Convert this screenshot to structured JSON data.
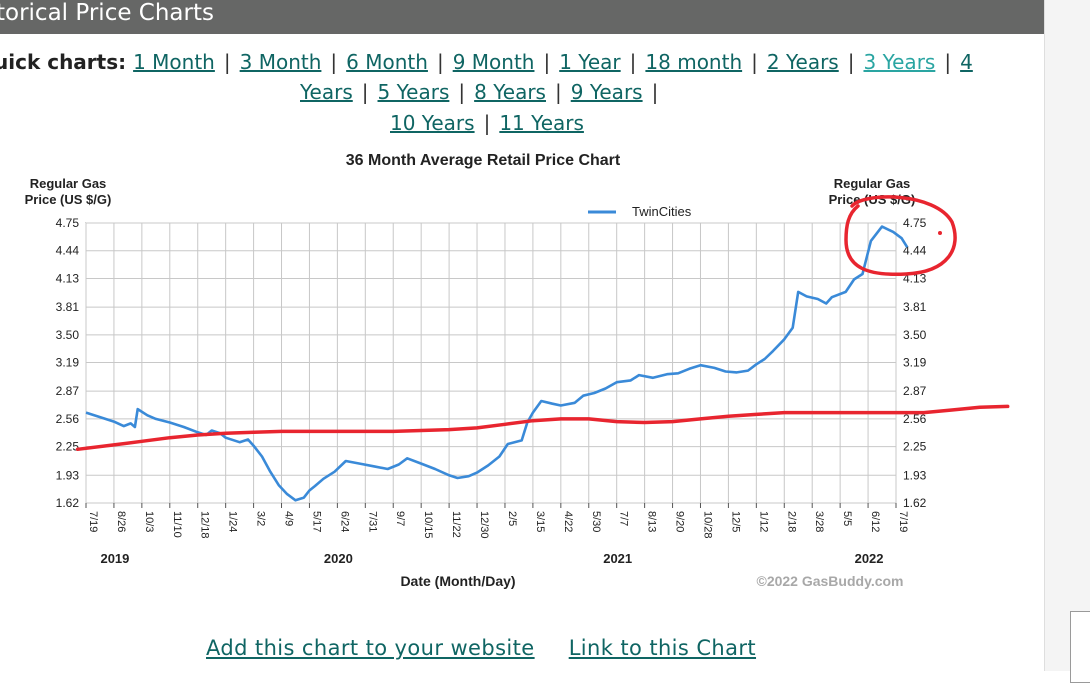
{
  "header": {
    "title": "torical Price Charts"
  },
  "quick_charts": {
    "label": "uick charts:",
    "links": [
      "1 Month",
      "3 Month",
      "6 Month",
      "9 Month",
      "1 Year",
      "18 month",
      "2 Years",
      "3 Years",
      "4",
      "Years",
      "5 Years",
      "8 Years",
      "9 Years",
      "10 Years",
      "11 Years"
    ]
  },
  "bottom_links": {
    "add": "Add this chart to your website",
    "link": "Link to this Chart"
  },
  "colors": {
    "series": "#3a8ad8",
    "annotation": "#e8252f",
    "link": "#0f6563",
    "link_visited": "#2aa5a2"
  },
  "chart_data": {
    "type": "line",
    "title": "36 Month Average Retail Price Chart",
    "ylabel_left": [
      "Regular Gas",
      "Price (US $/G)"
    ],
    "ylabel_right": [
      "Regular Gas",
      "Price (US $/G)"
    ],
    "xlabel": "Date (Month/Day)",
    "credit": "©2022 GasBuddy.com",
    "legend": "top-right",
    "grid": true,
    "ylim": [
      1.62,
      4.75
    ],
    "yticks": [
      "4.75",
      "4.44",
      "4.13",
      "3.81",
      "3.50",
      "3.19",
      "2.87",
      "2.56",
      "2.25",
      "1.93",
      "1.62"
    ],
    "xticks": [
      "7/19",
      "8/26",
      "10/3",
      "11/10",
      "12/18",
      "1/24",
      "3/2",
      "4/9",
      "5/17",
      "6/24",
      "7/31",
      "9/7",
      "10/15",
      "11/22",
      "12/30",
      "2/5",
      "3/15",
      "4/22",
      "5/30",
      "7/7",
      "8/13",
      "9/20",
      "10/28",
      "12/5",
      "1/12",
      "2/18",
      "3/28",
      "5/5",
      "6/12",
      "7/19"
    ],
    "years": [
      {
        "label": "2019",
        "at": 1
      },
      {
        "label": "2020",
        "at": 9
      },
      {
        "label": "2021",
        "at": 19
      },
      {
        "label": "2022",
        "at": 28
      }
    ],
    "series": [
      {
        "name": "TwinCities",
        "points": [
          [
            0,
            2.63
          ],
          [
            0.5,
            2.58
          ],
          [
            1,
            2.53
          ],
          [
            1.35,
            2.48
          ],
          [
            1.6,
            2.51
          ],
          [
            1.75,
            2.47
          ],
          [
            1.85,
            2.67
          ],
          [
            2.2,
            2.6
          ],
          [
            2.5,
            2.56
          ],
          [
            3,
            2.52
          ],
          [
            3.5,
            2.47
          ],
          [
            4,
            2.41
          ],
          [
            4.3,
            2.38
          ],
          [
            4.5,
            2.43
          ],
          [
            4.8,
            2.4
          ],
          [
            5,
            2.35
          ],
          [
            5.5,
            2.3
          ],
          [
            5.8,
            2.33
          ],
          [
            6,
            2.26
          ],
          [
            6.3,
            2.14
          ],
          [
            6.6,
            1.97
          ],
          [
            6.9,
            1.82
          ],
          [
            7.2,
            1.72
          ],
          [
            7.5,
            1.65
          ],
          [
            7.8,
            1.68
          ],
          [
            8,
            1.76
          ],
          [
            8.2,
            1.81
          ],
          [
            8.5,
            1.89
          ],
          [
            8.9,
            1.97
          ],
          [
            9.3,
            2.09
          ],
          [
            9.8,
            2.06
          ],
          [
            10.3,
            2.03
          ],
          [
            10.8,
            2.0
          ],
          [
            11.2,
            2.05
          ],
          [
            11.5,
            2.12
          ],
          [
            12,
            2.06
          ],
          [
            12.5,
            2.0
          ],
          [
            13,
            1.93
          ],
          [
            13.3,
            1.9
          ],
          [
            13.7,
            1.92
          ],
          [
            14,
            1.96
          ],
          [
            14.4,
            2.04
          ],
          [
            14.8,
            2.14
          ],
          [
            15.1,
            2.28
          ],
          [
            15.6,
            2.32
          ],
          [
            15.8,
            2.52
          ],
          [
            16,
            2.63
          ],
          [
            16.3,
            2.76
          ],
          [
            16.7,
            2.73
          ],
          [
            17,
            2.71
          ],
          [
            17.5,
            2.74
          ],
          [
            17.8,
            2.82
          ],
          [
            18.2,
            2.85
          ],
          [
            18.6,
            2.9
          ],
          [
            19,
            2.97
          ],
          [
            19.5,
            2.99
          ],
          [
            19.8,
            3.05
          ],
          [
            20.3,
            3.02
          ],
          [
            20.8,
            3.06
          ],
          [
            21.2,
            3.07
          ],
          [
            21.6,
            3.12
          ],
          [
            22,
            3.16
          ],
          [
            22.5,
            3.13
          ],
          [
            22.9,
            3.09
          ],
          [
            23.3,
            3.08
          ],
          [
            23.7,
            3.1
          ],
          [
            24,
            3.17
          ],
          [
            24.3,
            3.23
          ],
          [
            24.6,
            3.32
          ],
          [
            25,
            3.45
          ],
          [
            25.3,
            3.58
          ],
          [
            25.5,
            3.98
          ],
          [
            25.8,
            3.93
          ],
          [
            26.2,
            3.9
          ],
          [
            26.5,
            3.85
          ],
          [
            26.7,
            3.92
          ],
          [
            27.2,
            3.98
          ],
          [
            27.5,
            4.12
          ],
          [
            27.8,
            4.18
          ],
          [
            28.1,
            4.55
          ],
          [
            28.5,
            4.71
          ],
          [
            28.9,
            4.65
          ],
          [
            29.2,
            4.58
          ],
          [
            29.4,
            4.48
          ]
        ]
      }
    ]
  },
  "annotations": {
    "avg_line": [
      [
        -0.3,
        2.22
      ],
      [
        1,
        2.27
      ],
      [
        2,
        2.31
      ],
      [
        3,
        2.35
      ],
      [
        4,
        2.38
      ],
      [
        5,
        2.4
      ],
      [
        6,
        2.41
      ],
      [
        7,
        2.42
      ],
      [
        8,
        2.42
      ],
      [
        9,
        2.42
      ],
      [
        10,
        2.42
      ],
      [
        11,
        2.42
      ],
      [
        12,
        2.43
      ],
      [
        13,
        2.44
      ],
      [
        14,
        2.46
      ],
      [
        15,
        2.5
      ],
      [
        16,
        2.54
      ],
      [
        17,
        2.56
      ],
      [
        18,
        2.56
      ],
      [
        19,
        2.53
      ],
      [
        20,
        2.52
      ],
      [
        21,
        2.53
      ],
      [
        22,
        2.56
      ],
      [
        23,
        2.59
      ],
      [
        24,
        2.61
      ],
      [
        25,
        2.63
      ],
      [
        26,
        2.63
      ],
      [
        27,
        2.63
      ],
      [
        28,
        2.63
      ],
      [
        29,
        2.63
      ],
      [
        30,
        2.63
      ],
      [
        31,
        2.66
      ],
      [
        32,
        2.69
      ],
      [
        33,
        2.7
      ]
    ]
  }
}
